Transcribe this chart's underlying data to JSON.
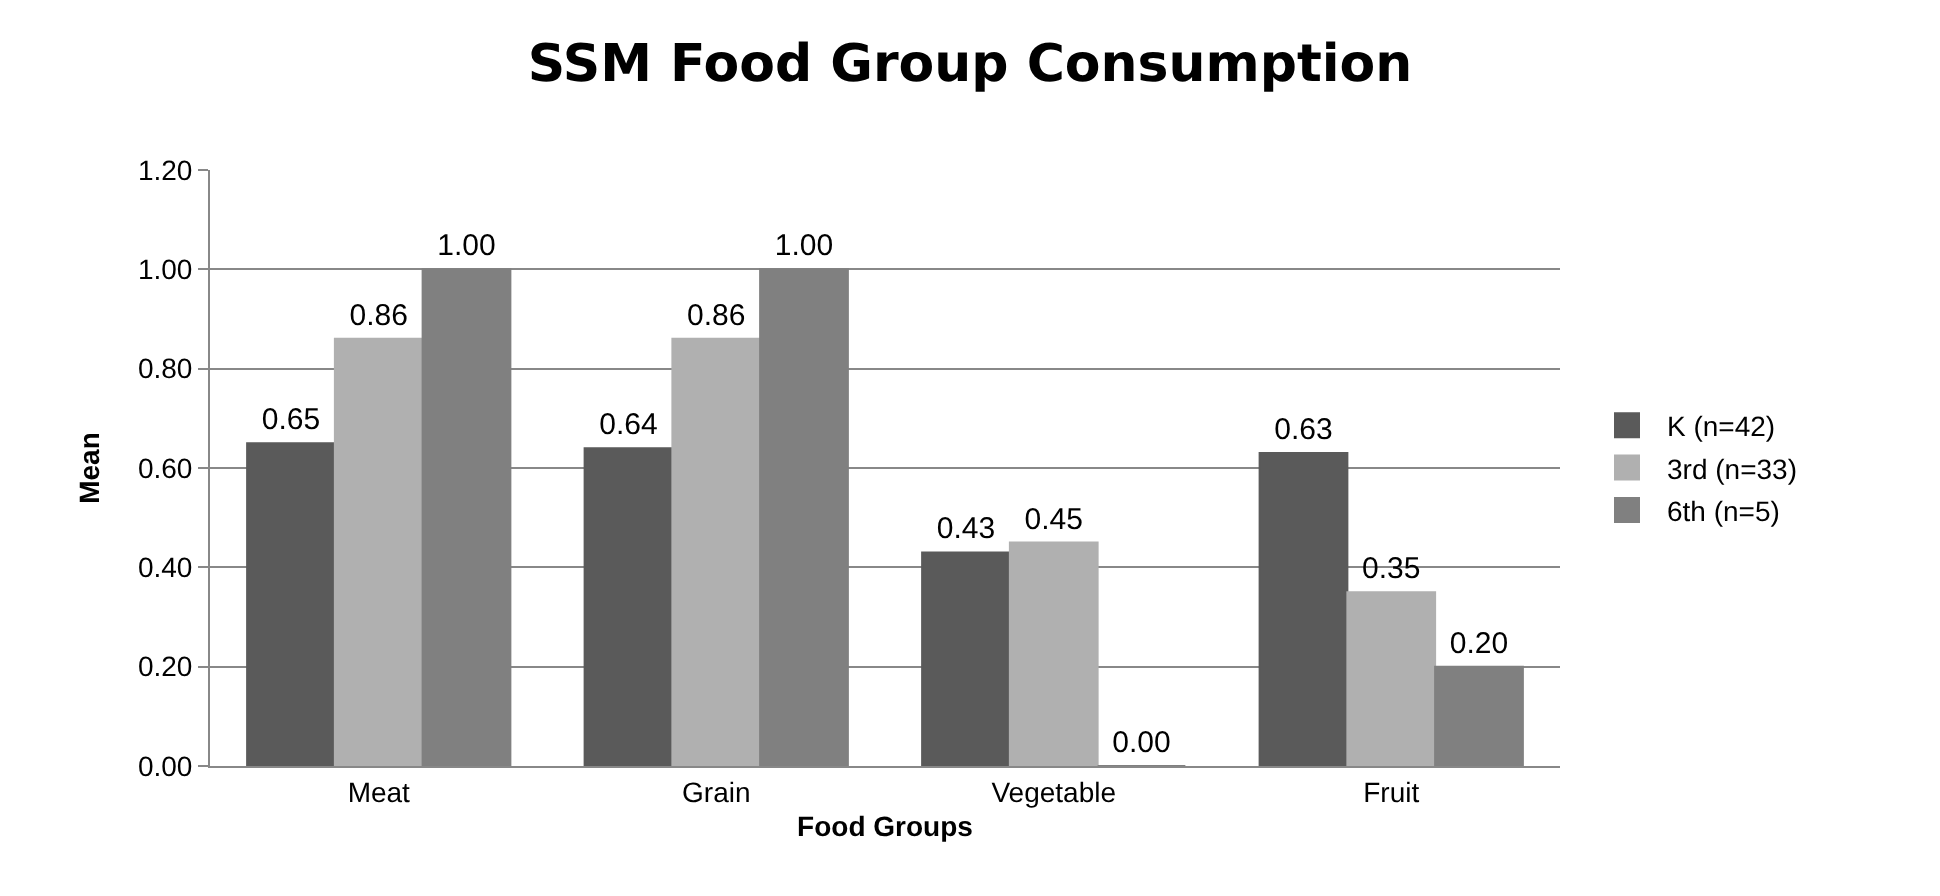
{
  "chart_data": {
    "type": "bar",
    "title": "SSM Food Group Consumption",
    "xlabel": "Food Groups",
    "ylabel": "Mean",
    "categories": [
      "Meat",
      "Grain",
      "Vegetable",
      "Fruit"
    ],
    "series": [
      {
        "name": "K (n=42)",
        "color": "#5a5a5a",
        "values": [
          0.65,
          0.64,
          0.43,
          0.63
        ],
        "value_labels": [
          "0.65",
          "0.64",
          "0.43",
          "0.63"
        ]
      },
      {
        "name": "3rd (n=33)",
        "color": "#b0b0b0",
        "values": [
          0.86,
          0.86,
          0.45,
          0.35
        ],
        "value_labels": [
          "0.86",
          "0.86",
          "0.45",
          "0.35"
        ]
      },
      {
        "name": "6th (n=5)",
        "color": "#808080",
        "values": [
          1.0,
          1.0,
          0.0,
          0.2
        ],
        "value_labels": [
          "1.00",
          "1.00",
          "0.00",
          "0.20"
        ]
      }
    ],
    "ylim": [
      0,
      1.2
    ],
    "yticks": [
      {
        "value": 0,
        "label": "0.00"
      },
      {
        "value": 0.2,
        "label": "0.20"
      },
      {
        "value": 0.4,
        "label": "0.40"
      },
      {
        "value": 0.6,
        "label": "0.60"
      },
      {
        "value": 0.8,
        "label": "0.80"
      },
      {
        "value": 1.0,
        "label": "1.00"
      },
      {
        "value": 1.2,
        "label": "1.20"
      }
    ],
    "grid": "y",
    "legend": "right"
  }
}
